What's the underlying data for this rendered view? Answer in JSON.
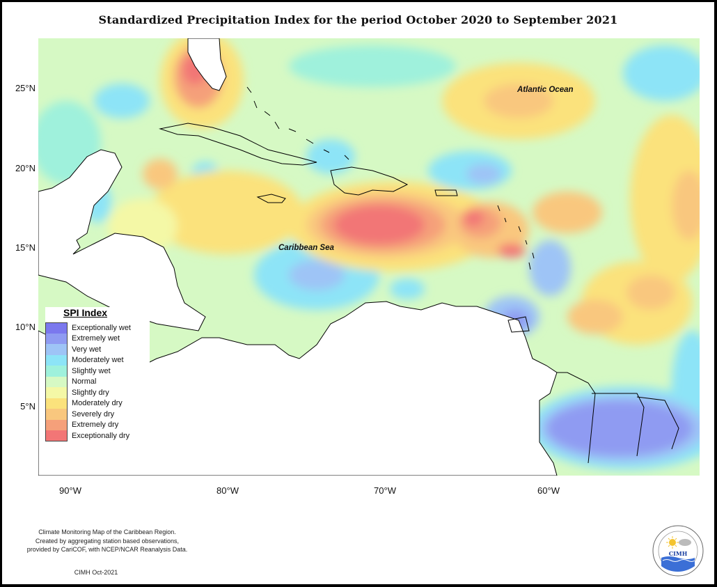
{
  "title": "Standardized Precipitation Index for the period October 2020 to September 2021",
  "map_labels": {
    "atlantic": "Atlantic Ocean",
    "caribbean": "Caribbean Sea"
  },
  "lat_labels": [
    "25°N",
    "20°N",
    "15°N",
    "10°N",
    "5°N"
  ],
  "lon_labels": [
    "90°W",
    "80°W",
    "70°W",
    "60°W"
  ],
  "legend": {
    "title": "SPI Index",
    "items": [
      {
        "label": "Exceptionally wet",
        "color": "#7b78ee"
      },
      {
        "label": "Extremely wet",
        "color": "#8f9bf2"
      },
      {
        "label": "Very wet",
        "color": "#9ec4f6"
      },
      {
        "label": "Moderately wet",
        "color": "#8de4f7"
      },
      {
        "label": "Slightly wet",
        "color": "#9ff1dc"
      },
      {
        "label": "Normal",
        "color": "#d6f9c4"
      },
      {
        "label": "Slightly dry",
        "color": "#f4f8a6"
      },
      {
        "label": "Moderately dry",
        "color": "#fbe27c"
      },
      {
        "label": "Severely dry",
        "color": "#f9c77e"
      },
      {
        "label": "Extremely dry",
        "color": "#f5a07a"
      },
      {
        "label": "Exceptionally dry",
        "color": "#f27676"
      }
    ]
  },
  "credit": {
    "line1": "Climate Monitoring Map of the Caribbean Region.",
    "line2": "Created by aggregating station based observations,",
    "line3": "provided by CariCOF, with NCEP/NCAR Reanalysis Data.",
    "date": "CIMH Oct-2021"
  },
  "logo_text": "CIMH"
}
